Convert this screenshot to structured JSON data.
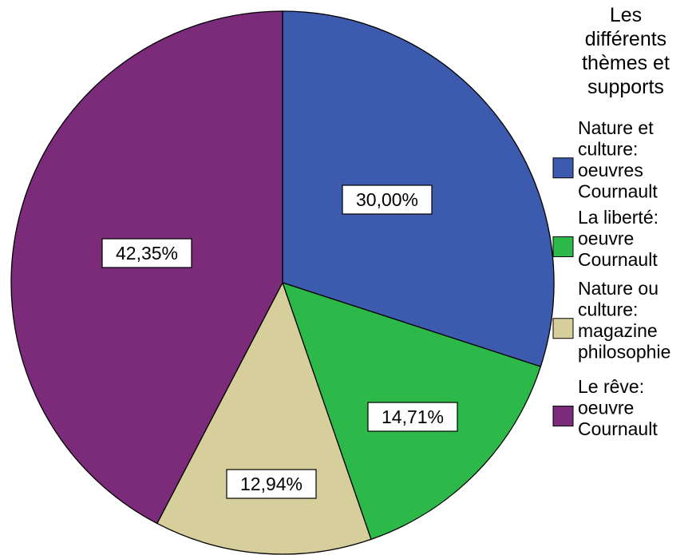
{
  "chart_data": {
    "type": "pie",
    "legend": {
      "title": "Les différents thèmes et supports",
      "placement": "right"
    },
    "slices": [
      {
        "label": "Nature et culture: oeuvres Cournault",
        "value": 30.0,
        "display": "30,00%",
        "color": "#3D5BAE"
      },
      {
        "label": "La liberté: oeuvre Cournault",
        "value": 14.71,
        "display": "14,71%",
        "color": "#2DB84A"
      },
      {
        "label": "Nature ou culture: magazine philosophie",
        "value": 12.94,
        "display": "12,94%",
        "color": "#D6CF9B"
      },
      {
        "label": "Le rêve: oeuvre Cournault",
        "value": 42.35,
        "display": "42,35%",
        "color": "#7B2B7A"
      }
    ]
  }
}
